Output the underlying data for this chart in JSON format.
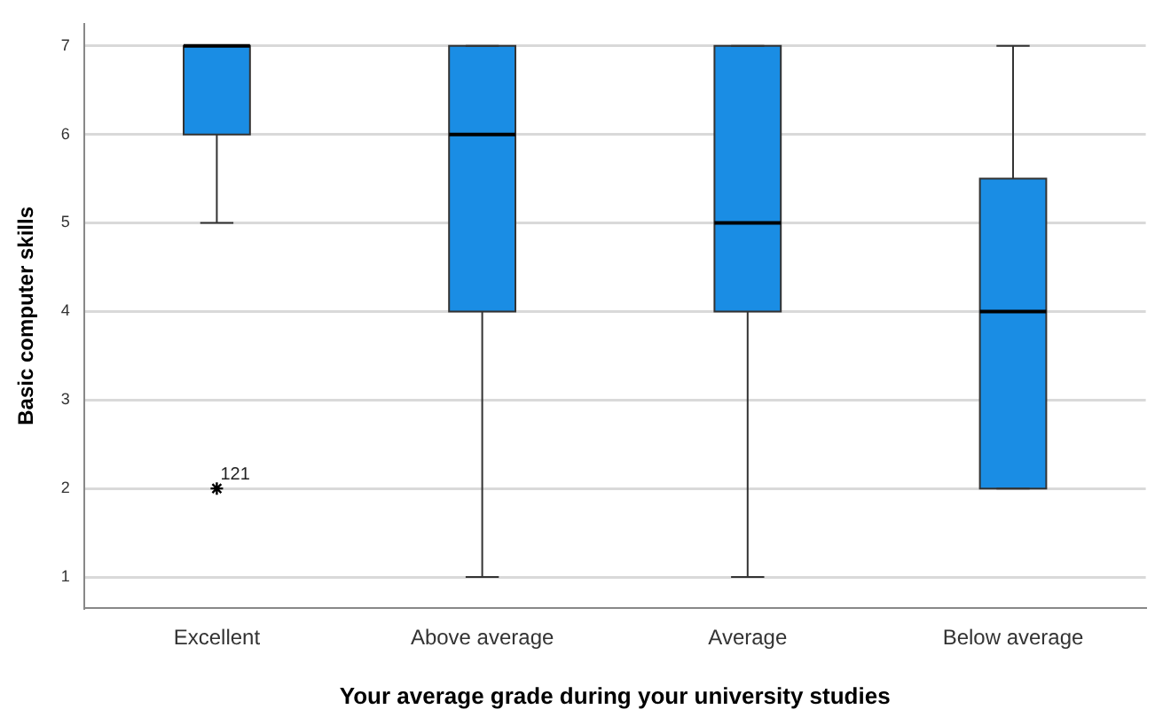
{
  "chart_data": {
    "type": "box",
    "xlabel": "Your average grade during your university studies",
    "ylabel": "Basic computer skills",
    "categories": [
      "Excellent",
      "Above average",
      "Average",
      "Below average"
    ],
    "color": "#1a8de4",
    "boxes": [
      {
        "low": 5,
        "q1": 6,
        "median": 7,
        "q3": 7,
        "high": 7,
        "outliers": [
          2
        ]
      },
      {
        "low": 1,
        "q1": 4,
        "median": 6,
        "q3": 7,
        "high": 7
      },
      {
        "low": 1,
        "q1": 4,
        "median": 5,
        "q3": 7,
        "high": 7
      },
      {
        "low": 2,
        "q1": 2,
        "median": 4,
        "q3": 5.5,
        "high": 7
      }
    ],
    "ylim": [
      0.65,
      7.25
    ],
    "yticks": [
      1,
      2,
      3,
      4,
      5,
      6,
      7
    ],
    "grid": "y",
    "marker": "star",
    "annotations": [
      "121"
    ]
  }
}
